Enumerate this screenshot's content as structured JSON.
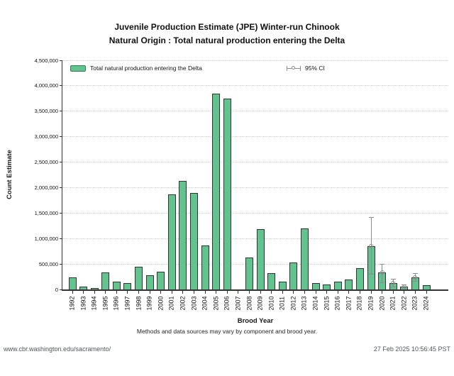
{
  "title": {
    "line1": "Juvenile Production Estimate (JPE) Winter-run Chinook",
    "line2": "Natural Origin : Total natural production entering the Delta"
  },
  "legend": {
    "series_label": "Total natural production entering the Delta",
    "ci_label": "95% CI"
  },
  "axes": {
    "ylabel": "Count Estimate",
    "xlabel": "Brood Year"
  },
  "note": "Methods and data sources may vary by component and brood year.",
  "footer": {
    "left": "www.cbr.washington.edu/sacramento/",
    "right": "27 Feb 2025 10:56:45 PST"
  },
  "colors": {
    "bar_fill": "#63c38e",
    "bar_border": "#333333",
    "swatch_border": "#2e7d54",
    "ci": "#8c8c8c",
    "grid": "#c9c9c9",
    "axis": "#333333",
    "footer_text": "#4d565e"
  },
  "chart_data": {
    "type": "bar",
    "title": "Juvenile Production Estimate (JPE) Winter-run Chinook — Natural Origin : Total natural production entering the Delta",
    "xlabel": "Brood Year",
    "ylabel": "Count Estimate",
    "ylim": [
      0,
      4500000
    ],
    "ytick_step": 500000,
    "grid": "horizontal-dotted",
    "legend_position": "top-left-inside",
    "categories": [
      "1992",
      "1993",
      "1994",
      "1995",
      "1996",
      "1997",
      "1998",
      "1999",
      "2000",
      "2001",
      "2002",
      "2003",
      "2004",
      "2005",
      "2006",
      "2007",
      "2008",
      "2009",
      "2010",
      "2011",
      "2012",
      "2013",
      "2014",
      "2015",
      "2016",
      "2017",
      "2018",
      "2019",
      "2020",
      "2021",
      "2022",
      "2023",
      "2024"
    ],
    "values": [
      240000,
      60000,
      30000,
      330000,
      150000,
      130000,
      440000,
      280000,
      350000,
      1860000,
      2130000,
      1890000,
      870000,
      3840000,
      3750000,
      null,
      620000,
      1180000,
      320000,
      160000,
      530000,
      1200000,
      120000,
      100000,
      160000,
      190000,
      420000,
      850000,
      330000,
      125000,
      50000,
      235000,
      90000
    ],
    "ci_low": [
      null,
      null,
      null,
      null,
      null,
      null,
      null,
      null,
      null,
      null,
      null,
      null,
      null,
      null,
      null,
      null,
      null,
      null,
      null,
      null,
      null,
      null,
      null,
      null,
      null,
      null,
      null,
      300000,
      135000,
      42000,
      15000,
      157000,
      null
    ],
    "ci_high": [
      null,
      null,
      null,
      null,
      null,
      null,
      null,
      null,
      null,
      null,
      null,
      null,
      null,
      null,
      null,
      null,
      null,
      null,
      null,
      null,
      null,
      null,
      null,
      null,
      null,
      null,
      null,
      1410000,
      500000,
      200000,
      88000,
      310000,
      null
    ]
  }
}
